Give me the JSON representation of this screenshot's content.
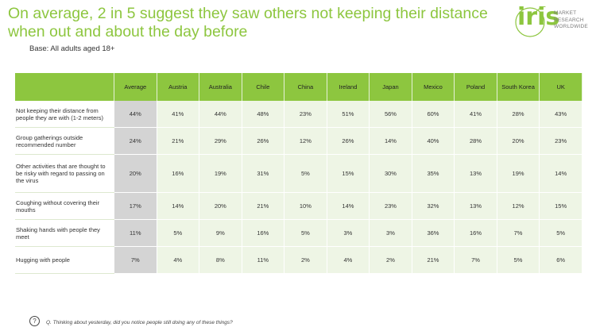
{
  "title": "On average, 2 in 5 suggest they saw others not keeping their distance when out and about the day before",
  "subtitle": "Base: All adults aged 18+",
  "logo": {
    "word": "iris",
    "text_lines": [
      "MARKET",
      "RESEARCH",
      "WORLDWIDE"
    ]
  },
  "question": "Q. Thinking about yesterday, did you notice people still doing any of these things?",
  "question_icon": "?",
  "colors": {
    "accent": "#8dc63f",
    "cell_bg": "#eef5e5",
    "average_bg": "#d4d4d4"
  },
  "chart_data": {
    "type": "table",
    "columns": [
      "Average",
      "Austria",
      "Australia",
      "Chile",
      "China",
      "Ireland",
      "Japan",
      "Mexico",
      "Poland",
      "South Korea",
      "UK"
    ],
    "rows": [
      {
        "label": "Not keeping their distance from people they are with (1-2 meters)",
        "values": [
          "44%",
          "41%",
          "44%",
          "48%",
          "23%",
          "51%",
          "56%",
          "60%",
          "41%",
          "28%",
          "43%"
        ]
      },
      {
        "label": "Group gatherings outside recommended number",
        "values": [
          "24%",
          "21%",
          "29%",
          "26%",
          "12%",
          "26%",
          "14%",
          "40%",
          "28%",
          "20%",
          "23%"
        ]
      },
      {
        "label": "Other activities that are thought to be risky with regard to passing on the virus",
        "values": [
          "20%",
          "16%",
          "19%",
          "31%",
          "5%",
          "15%",
          "30%",
          "35%",
          "13%",
          "19%",
          "14%"
        ]
      },
      {
        "label": "Coughing without covering their mouths",
        "values": [
          "17%",
          "14%",
          "20%",
          "21%",
          "10%",
          "14%",
          "23%",
          "32%",
          "13%",
          "12%",
          "15%"
        ]
      },
      {
        "label": "Shaking hands with people they meet",
        "values": [
          "11%",
          "5%",
          "9%",
          "16%",
          "5%",
          "3%",
          "3%",
          "36%",
          "16%",
          "7%",
          "5%"
        ]
      },
      {
        "label": "Hugging with people",
        "values": [
          "7%",
          "4%",
          "8%",
          "11%",
          "2%",
          "4%",
          "2%",
          "21%",
          "7%",
          "5%",
          "6%"
        ]
      }
    ]
  }
}
